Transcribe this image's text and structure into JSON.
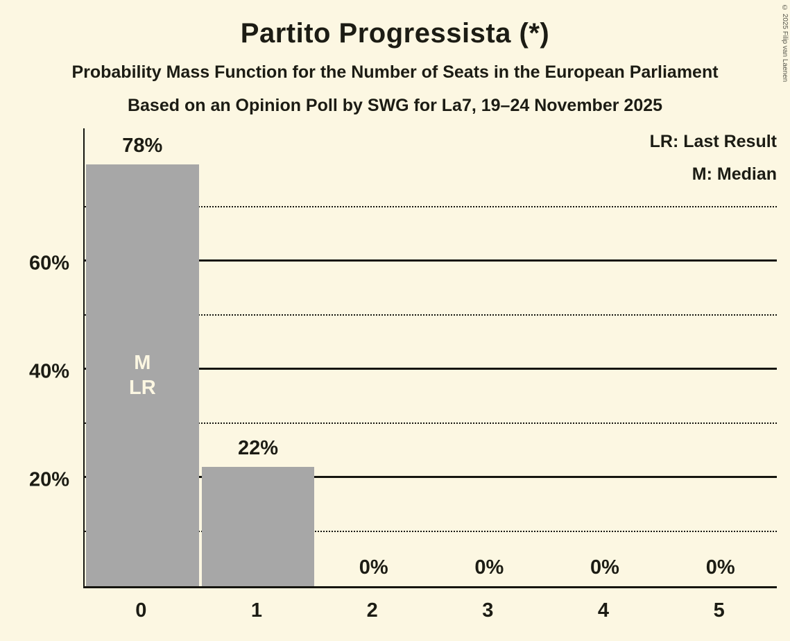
{
  "meta": {
    "copyright": "© 2025 Filip van Laenen"
  },
  "header": {
    "title": "Partito Progressista (*)",
    "subtitle1": "Probability Mass Function for the Number of Seats in the European Parliament",
    "subtitle2": "Based on an Opinion Poll by SWG for La7, 19–24 November 2025"
  },
  "legend": {
    "lr": "LR: Last Result",
    "m": "M: Median"
  },
  "chart_data": {
    "type": "bar",
    "title": "Partito Progressista (*)",
    "subtitle": "Probability Mass Function for the Number of Seats in the European Parliament",
    "source_line": "Based on an Opinion Poll by SWG for La7, 19–24 November 2025",
    "categories": [
      "0",
      "1",
      "2",
      "3",
      "4",
      "5"
    ],
    "values": [
      78,
      22,
      0,
      0,
      0,
      0
    ],
    "value_labels": [
      "78%",
      "22%",
      "0%",
      "0%",
      "0%",
      "0%"
    ],
    "ylim": [
      0,
      85
    ],
    "yticks": [
      {
        "value": 20,
        "label": "20%"
      },
      {
        "value": 40,
        "label": "40%"
      },
      {
        "value": 60,
        "label": "60%"
      }
    ],
    "grid": {
      "solid": [
        20,
        40,
        60
      ],
      "dotted": [
        10,
        30,
        50,
        70
      ]
    },
    "bar_annotations": [
      {
        "bar": 0,
        "lines": [
          "M",
          "LR"
        ]
      }
    ],
    "legend_entries": [
      "LR: Last Result",
      "M: Median"
    ],
    "legend_position": "top-right",
    "colors": {
      "background": "#FCF7E2",
      "bar": "#A7A7A7",
      "text": "#1C1C14",
      "annotation_text": "#FCF7E2"
    }
  }
}
